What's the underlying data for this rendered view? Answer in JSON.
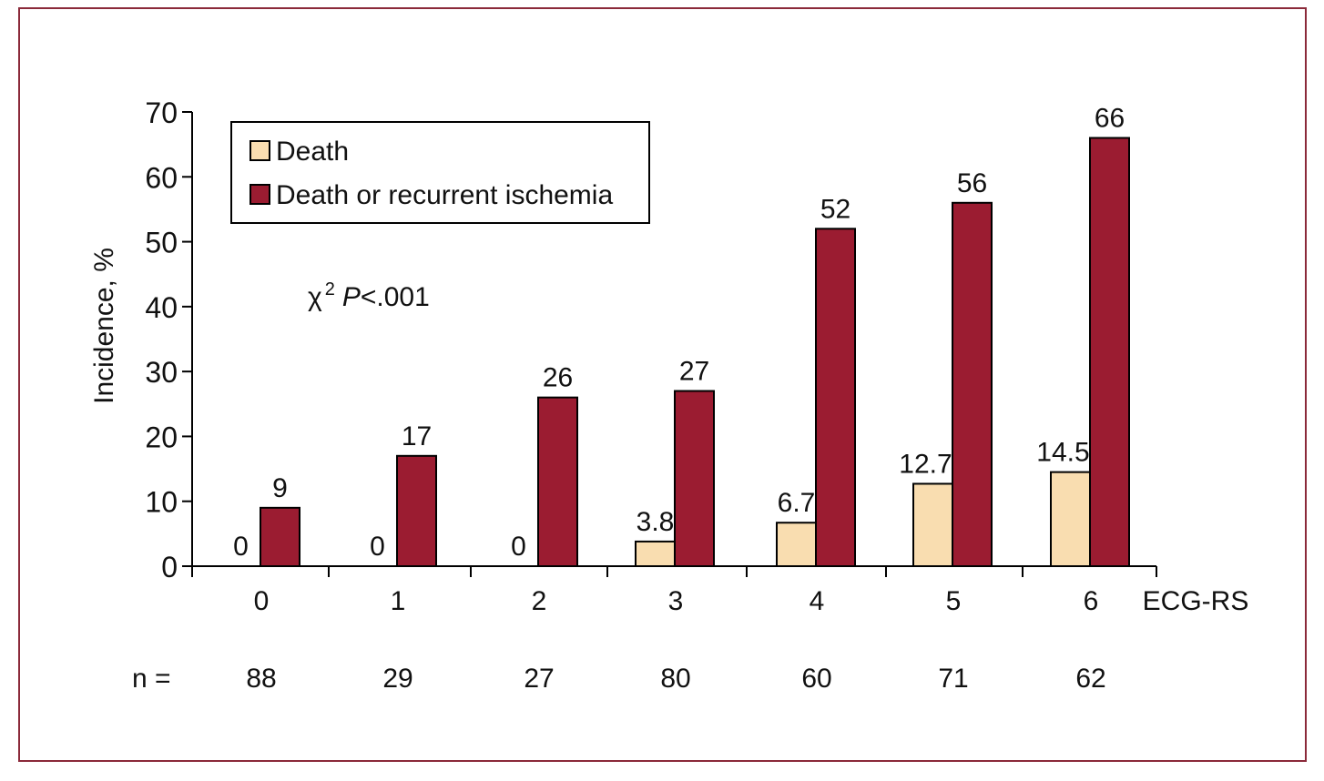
{
  "chart_data": {
    "type": "bar",
    "title": "",
    "xlabel": "ECG-RS",
    "ylabel": "Incidence, %",
    "ylim": [
      0,
      70
    ],
    "yticks": [
      0,
      10,
      20,
      30,
      40,
      50,
      60,
      70
    ],
    "categories": [
      "0",
      "1",
      "2",
      "3",
      "4",
      "5",
      "6"
    ],
    "series": [
      {
        "name": "Death",
        "color": "#f9ddb0",
        "values": [
          0,
          0,
          0,
          3.8,
          6.7,
          12.7,
          14.5
        ],
        "labels": [
          "0",
          "0",
          "0",
          "3.8",
          "6.7",
          "12.7",
          "14.5"
        ]
      },
      {
        "name": "Death or recurrent ischemia",
        "color": "#9b1c31",
        "values": [
          9,
          17,
          26,
          27,
          52,
          56,
          66
        ],
        "labels": [
          "9",
          "17",
          "26",
          "27",
          "52",
          "56",
          "66"
        ]
      }
    ],
    "n_label": "n =",
    "n_values": [
      "88",
      "29",
      "27",
      "80",
      "60",
      "71",
      "62"
    ],
    "annotation": {
      "chi": "χ",
      "sup": "2",
      "p": "P",
      "rest": "<.001"
    },
    "legend_position": "top-left",
    "grid": false,
    "frame_color": "#8b2a3a"
  }
}
